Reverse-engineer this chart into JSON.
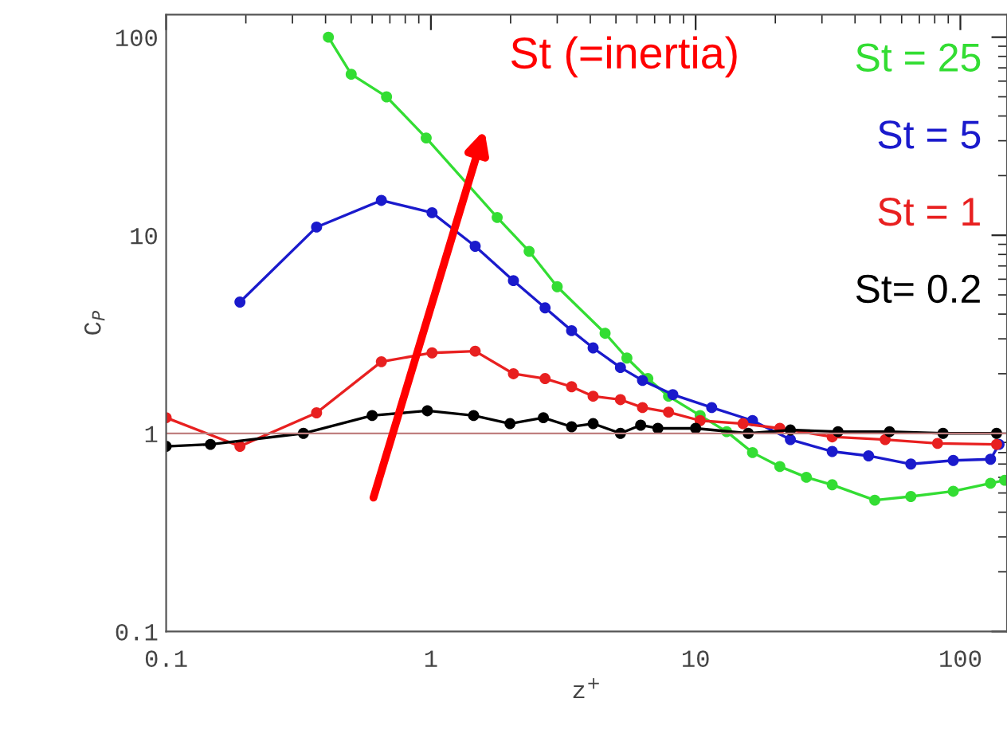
{
  "chart_data": {
    "type": "line",
    "xlabel": "z$^{+}$",
    "ylabel": "C$_{P}$",
    "log": "xy",
    "xlim": [
      0.1,
      150
    ],
    "ylim": [
      0.1,
      130
    ],
    "xticks": [
      0.1,
      1,
      10,
      100
    ],
    "yticks": [
      0.1,
      1,
      10,
      100
    ],
    "marker": "circle",
    "line_style": "solid",
    "grid": false,
    "legend": "top right",
    "annotations": [
      "St (=inertia)"
    ],
    "ref_lines": [
      {
        "axis": "y",
        "value": 1,
        "label": null,
        "color": "#c08080"
      }
    ],
    "series": [
      {
        "name": "St = 25",
        "color": "#33dd33",
        "x": [
          0.41,
          0.5,
          0.68,
          0.96,
          1.78,
          2.35,
          3.0,
          4.55,
          5.5,
          6.6,
          7.9,
          10.4,
          13.1,
          16.4,
          20.8,
          26.2,
          32.8,
          47.5,
          65,
          94,
          130,
          147
        ],
        "values": [
          100,
          65,
          50,
          31,
          12.3,
          8.3,
          5.5,
          3.2,
          2.4,
          1.89,
          1.54,
          1.23,
          1.02,
          0.8,
          0.68,
          0.6,
          0.55,
          0.46,
          0.48,
          0.51,
          0.56,
          0.58
        ]
      },
      {
        "name": "St = 5",
        "color": "#1a1acc",
        "x": [
          0.19,
          0.37,
          0.65,
          1.01,
          1.47,
          2.05,
          2.7,
          3.4,
          4.1,
          5.2,
          6.3,
          8.2,
          11.5,
          16.4,
          22.8,
          32.8,
          45,
          65,
          94,
          130,
          140
        ],
        "values": [
          4.6,
          11,
          15,
          13,
          8.8,
          5.9,
          4.3,
          3.3,
          2.7,
          2.15,
          1.85,
          1.57,
          1.35,
          1.16,
          0.93,
          0.81,
          0.77,
          0.7,
          0.73,
          0.74,
          0.88
        ]
      },
      {
        "name": "St = 1",
        "color": "#e82020",
        "x": [
          0.1,
          0.19,
          0.37,
          0.65,
          1.01,
          1.47,
          2.05,
          2.7,
          3.4,
          4.1,
          5.2,
          6.3,
          7.9,
          10.4,
          15.1,
          20.8,
          32.8,
          52,
          82,
          137
        ],
        "values": [
          1.2,
          0.86,
          1.27,
          2.3,
          2.55,
          2.6,
          2.0,
          1.89,
          1.72,
          1.54,
          1.48,
          1.35,
          1.28,
          1.16,
          1.12,
          1.06,
          0.96,
          0.93,
          0.89,
          0.88
        ]
      },
      {
        "name": "St= 0.2",
        "color": "#000000",
        "x": [
          0.1,
          0.147,
          0.33,
          0.6,
          0.97,
          1.45,
          1.99,
          2.66,
          3.4,
          4.1,
          5.2,
          6.2,
          7.2,
          10,
          15.8,
          22.8,
          34.5,
          54,
          86,
          137
        ],
        "values": [
          0.86,
          0.88,
          1.0,
          1.23,
          1.3,
          1.23,
          1.12,
          1.2,
          1.08,
          1.12,
          1.0,
          1.1,
          1.06,
          1.06,
          1.0,
          1.04,
          1.02,
          1.02,
          1.0,
          1.0
        ]
      }
    ]
  }
}
